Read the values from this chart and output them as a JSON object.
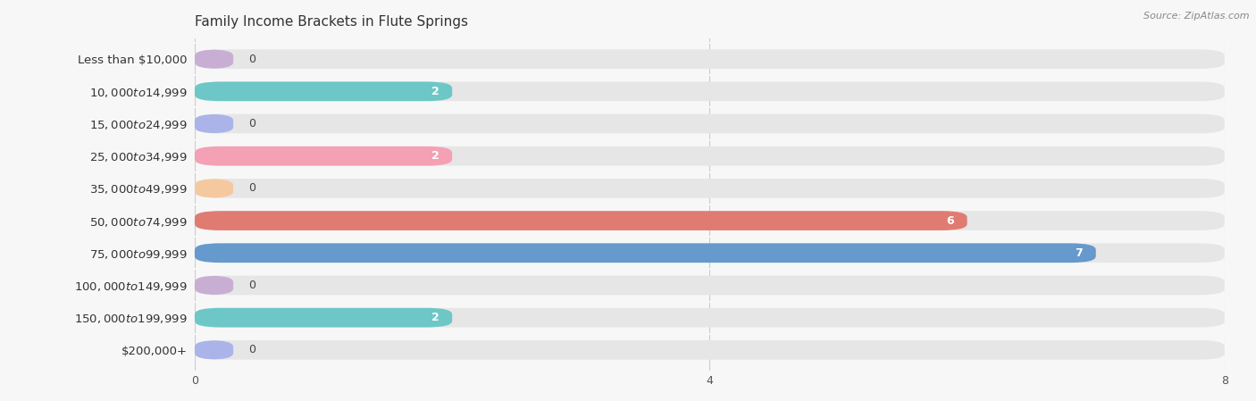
{
  "title": "Family Income Brackets in Flute Springs",
  "source": "Source: ZipAtlas.com",
  "categories": [
    "Less than $10,000",
    "$10,000 to $14,999",
    "$15,000 to $24,999",
    "$25,000 to $34,999",
    "$35,000 to $49,999",
    "$50,000 to $74,999",
    "$75,000 to $99,999",
    "$100,000 to $149,999",
    "$150,000 to $199,999",
    "$200,000+"
  ],
  "values": [
    0,
    2,
    0,
    2,
    0,
    6,
    7,
    0,
    2,
    0
  ],
  "bar_colors": [
    "#c9aed4",
    "#6dc7c7",
    "#aab4e8",
    "#f4a0b5",
    "#f5c9a0",
    "#e07b72",
    "#6699cc",
    "#c9aed4",
    "#6dc7c7",
    "#aab4e8"
  ],
  "background_color": "#f7f7f7",
  "bar_bg_color": "#e6e6e6",
  "xlim": [
    0,
    8
  ],
  "xticks": [
    0,
    4,
    8
  ],
  "title_fontsize": 11,
  "label_fontsize": 9.5,
  "value_fontsize": 9
}
